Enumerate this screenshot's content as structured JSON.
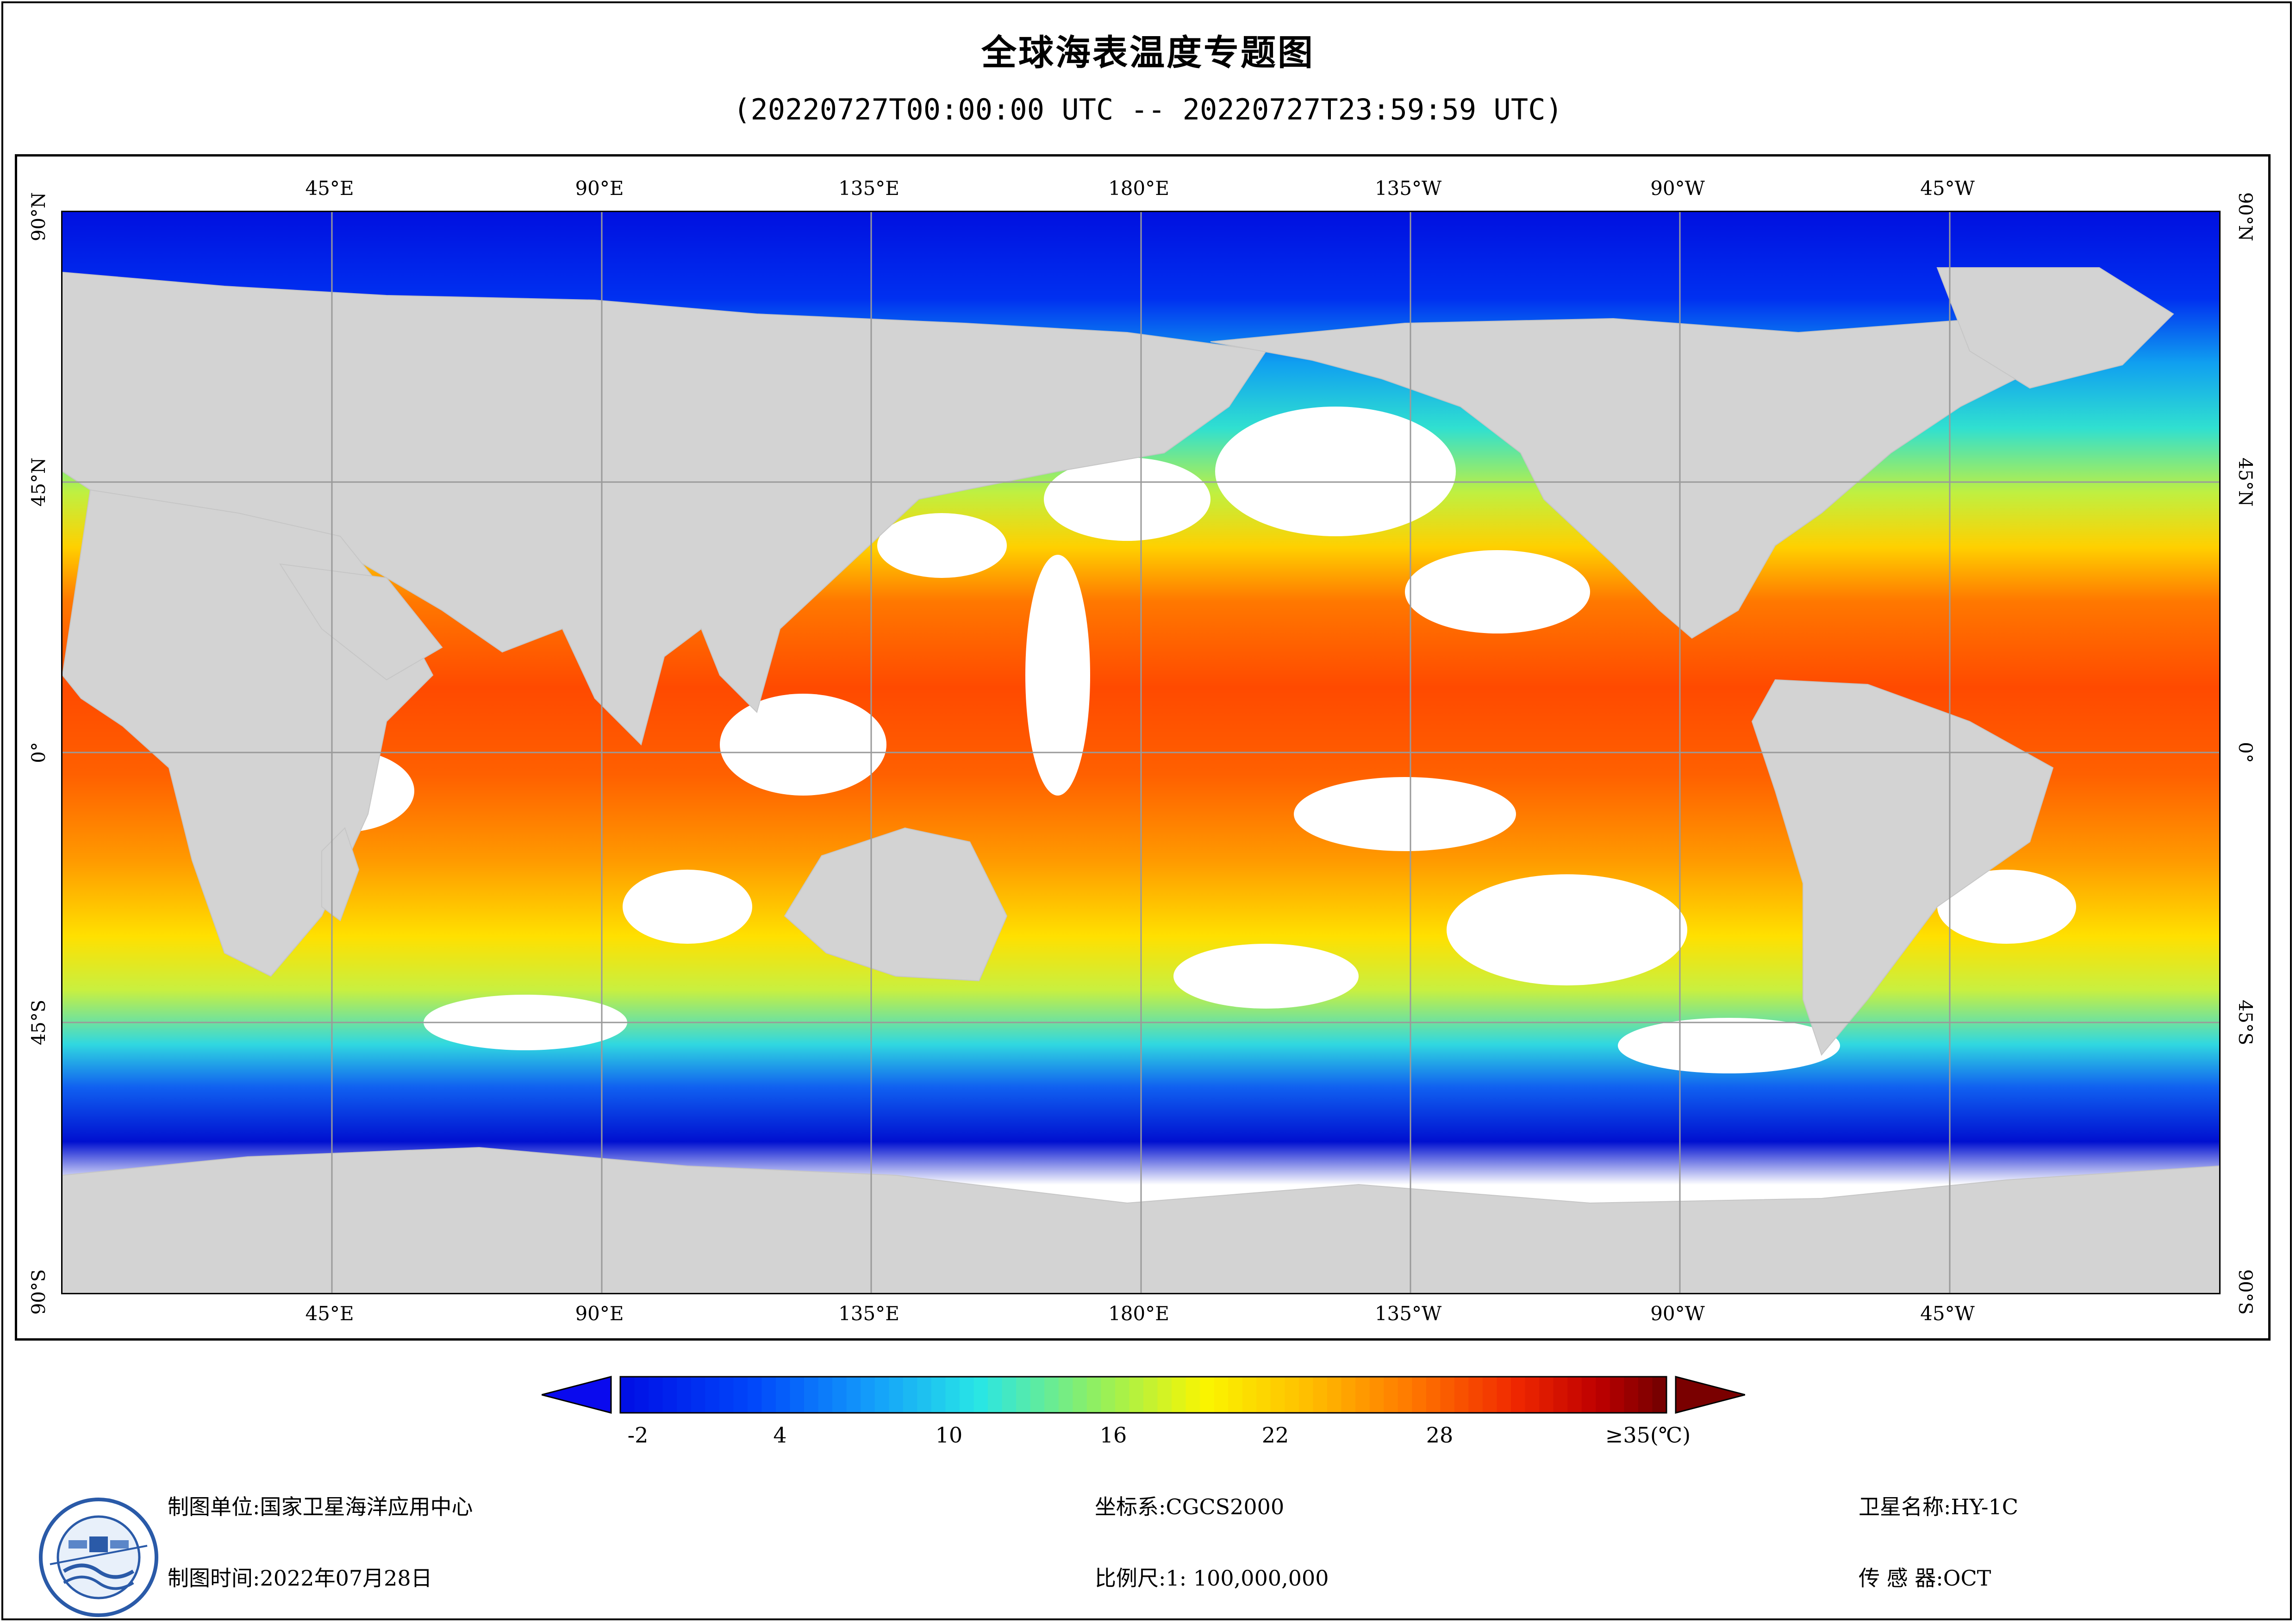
{
  "title": "全球海表温度专题图",
  "subtitle": "(20220727T00:00:00 UTC -- 20220727T23:59:59 UTC)",
  "map": {
    "lon_labels": [
      "45°E",
      "90°E",
      "135°E",
      "180°E",
      "135°W",
      "90°W",
      "45°W"
    ],
    "lat_labels": [
      "90°N",
      "45°N",
      "0°",
      "45°S",
      "90°S"
    ],
    "colors": {
      "land": "#d3d3d3",
      "nodata": "#ffffff",
      "grid": "#9a9a9a"
    }
  },
  "legend": {
    "ticks": [
      "-2",
      "4",
      "10",
      "16",
      "22",
      "28",
      "≥35(℃)"
    ],
    "range_min": -2,
    "range_max": 35,
    "colors": {
      "under": "#0a0aee",
      "over": "#7a0000"
    }
  },
  "footer": {
    "producer_label": "制图单位:",
    "producer": "国家卫星海洋应用中心",
    "date_label": "制图时间:",
    "date": "2022年07月28日",
    "crs_label": "坐标系:",
    "crs": "CGCS2000",
    "scale_label": "比例尺:",
    "scale": "1: 100,000,000",
    "satellite_label": "卫星名称:",
    "satellite": "HY-1C",
    "sensor_label": "传 感 器:",
    "sensor": "OCT"
  }
}
